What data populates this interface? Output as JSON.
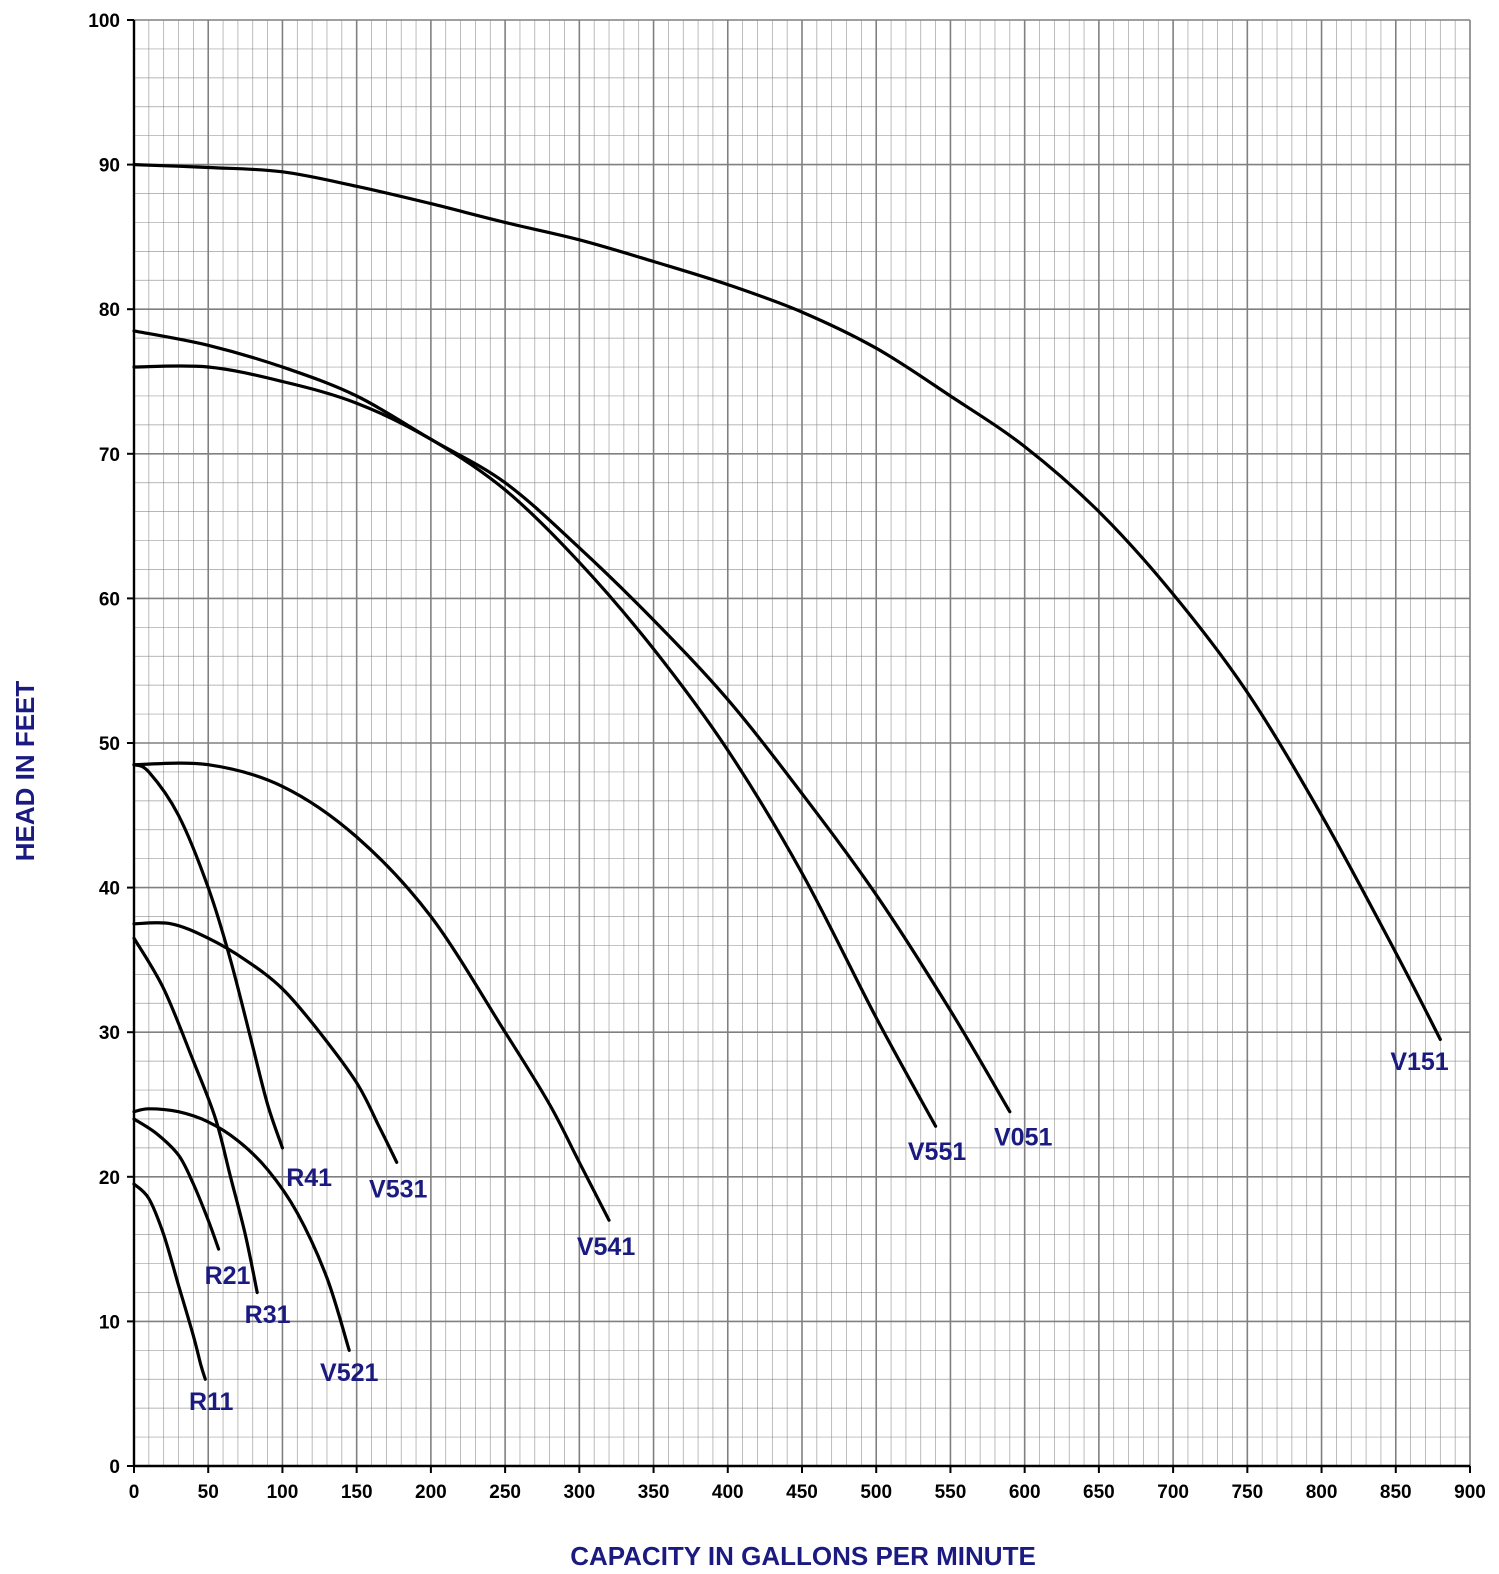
{
  "chart_data": {
    "type": "line",
    "xlabel": "CAPACITY IN GALLONS PER MINUTE",
    "ylabel": "HEAD IN FEET",
    "xlim": [
      0,
      900
    ],
    "ylim": [
      0,
      100
    ],
    "x_ticks": [
      "0",
      "50",
      "100",
      "150",
      "200",
      "250",
      "300",
      "350",
      "400",
      "450",
      "500",
      "550",
      "600",
      "650",
      "700",
      "750",
      "800",
      "850",
      "900"
    ],
    "y_ticks": [
      "0",
      "10",
      "20",
      "30",
      "40",
      "50",
      "60",
      "70",
      "80",
      "90",
      "100"
    ],
    "grid": true,
    "minor_grid_divisions": 5,
    "colors": {
      "grid": "#808080",
      "curves": "#000000",
      "labels": "#1a1a80"
    },
    "series": [
      {
        "name": "R11",
        "label_at": [
          52,
          4.5
        ],
        "x": [
          0,
          10,
          20,
          30,
          40,
          45,
          48
        ],
        "y": [
          19.5,
          18.5,
          16,
          12.5,
          9,
          7,
          6
        ]
      },
      {
        "name": "R21",
        "label_at": [
          63,
          13.2
        ],
        "x": [
          0,
          15,
          30,
          40,
          50,
          57
        ],
        "y": [
          24,
          23,
          21.5,
          19.5,
          17,
          15
        ]
      },
      {
        "name": "R31",
        "label_at": [
          90,
          10.5
        ],
        "x": [
          0,
          20,
          40,
          55,
          65,
          75,
          83
        ],
        "y": [
          36.5,
          33,
          28,
          24,
          20,
          16,
          12
        ]
      },
      {
        "name": "R41",
        "label_at": [
          118,
          20
        ],
        "x": [
          0,
          10,
          30,
          50,
          65,
          80,
          90,
          100
        ],
        "y": [
          48.5,
          48,
          45,
          40,
          35,
          29,
          25,
          22
        ]
      },
      {
        "name": "V521",
        "label_at": [
          145,
          6.5
        ],
        "x": [
          0,
          10,
          30,
          50,
          70,
          90,
          110,
          130,
          145
        ],
        "y": [
          24.5,
          24.7,
          24.5,
          23.8,
          22.5,
          20.5,
          17.5,
          13,
          8
        ]
      },
      {
        "name": "V531",
        "label_at": [
          178,
          19.2
        ],
        "x": [
          0,
          25,
          50,
          75,
          100,
          125,
          150,
          165,
          177
        ],
        "y": [
          37.5,
          37.5,
          36.5,
          35,
          33,
          30,
          26.5,
          23.5,
          21
        ]
      },
      {
        "name": "V541",
        "label_at": [
          318,
          15.2
        ],
        "x": [
          0,
          50,
          100,
          150,
          200,
          250,
          280,
          300,
          320
        ],
        "y": [
          48.5,
          48.5,
          47,
          43.5,
          38,
          30,
          25,
          21,
          17
        ]
      },
      {
        "name": "V551",
        "label_at": [
          541,
          21.8
        ],
        "x": [
          0,
          50,
          100,
          150,
          200,
          250,
          300,
          350,
          400,
          450,
          500,
          540
        ],
        "y": [
          76,
          76,
          75,
          73.5,
          71,
          67.5,
          62.5,
          56.5,
          49.5,
          41,
          31,
          23.5
        ]
      },
      {
        "name": "V051",
        "label_at": [
          599,
          22.8
        ],
        "x": [
          0,
          50,
          100,
          150,
          200,
          250,
          300,
          350,
          400,
          450,
          500,
          550,
          590
        ],
        "y": [
          78.5,
          77.5,
          76,
          74,
          71,
          68,
          63.5,
          58.5,
          53,
          46.5,
          39.5,
          31.5,
          24.5
        ]
      },
      {
        "name": "V151",
        "label_at": [
          866,
          28
        ],
        "x": [
          0,
          50,
          100,
          150,
          200,
          250,
          300,
          350,
          400,
          450,
          500,
          550,
          600,
          650,
          700,
          750,
          800,
          850,
          880
        ],
        "y": [
          90,
          89.8,
          89.5,
          88.5,
          87.3,
          86,
          84.8,
          83.3,
          81.7,
          79.8,
          77.3,
          74,
          70.5,
          66,
          60.3,
          53.5,
          45,
          35.5,
          29.5
        ]
      }
    ]
  }
}
